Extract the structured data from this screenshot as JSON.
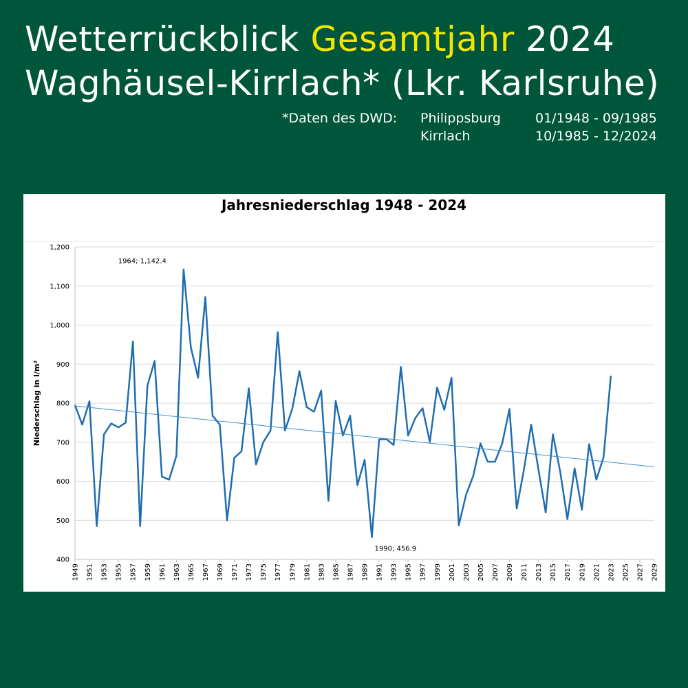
{
  "header": {
    "title_part1": "Wetterrückblick ",
    "title_highlight": "Gesamtjahr",
    "title_part2": " 2024",
    "subtitle": "Waghäusel-Kirrlach* (Lkr. Karlsruhe)",
    "source_label": "*Daten des DWD:",
    "stations": [
      {
        "name": "Philippsburg",
        "period": "01/1948 - 09/1985"
      },
      {
        "name": "Kirrlach",
        "period": "10/1985 - 12/2024"
      }
    ],
    "highlight_color": "#f2e600",
    "background_color": "#00563a"
  },
  "chart_data": {
    "type": "line",
    "title": "Jahresniederschlag 1948 - 2024",
    "xlabel": "",
    "ylabel": "Niederschlag in l/m²",
    "ylim": [
      400,
      1200
    ],
    "xlim": [
      1949,
      2029
    ],
    "y_ticks": [
      "400",
      "500",
      "600",
      "700",
      "800",
      "900",
      "1,000",
      "1,100",
      "1,200"
    ],
    "x_ticks": [
      "1949",
      "1951",
      "1953",
      "1955",
      "1957",
      "1959",
      "1961",
      "1963",
      "1965",
      "1967",
      "1969",
      "1971",
      "1973",
      "1975",
      "1977",
      "1979",
      "1981",
      "1983",
      "1985",
      "1987",
      "1989",
      "1991",
      "1993",
      "1995",
      "1997",
      "1999",
      "2001",
      "2003",
      "2005",
      "2007",
      "2009",
      "2011",
      "2013",
      "2015",
      "2017",
      "2019",
      "2021",
      "2023",
      "2025",
      "2027",
      "2029"
    ],
    "grid": true,
    "series": [
      {
        "color": "#1f6db0",
        "x": [
          1949,
          1950,
          1951,
          1952,
          1953,
          1954,
          1955,
          1956,
          1957,
          1958,
          1959,
          1960,
          1961,
          1962,
          1963,
          1964,
          1965,
          1966,
          1967,
          1968,
          1969,
          1970,
          1971,
          1972,
          1973,
          1974,
          1975,
          1976,
          1977,
          1978,
          1979,
          1980,
          1981,
          1982,
          1983,
          1984,
          1985,
          1986,
          1987,
          1988,
          1989,
          1990,
          1991,
          1992,
          1993,
          1994,
          1995,
          1996,
          1997,
          1998,
          1999,
          2000,
          2001,
          2002,
          2003,
          2004,
          2005,
          2006,
          2007,
          2008,
          2009,
          2010,
          2011,
          2012,
          2013,
          2014,
          2015,
          2016,
          2017,
          2018,
          2019,
          2020,
          2021,
          2022,
          2023
        ],
        "values": [
          795,
          745,
          805,
          485,
          720,
          748,
          738,
          750,
          958,
          485,
          845,
          908,
          612,
          604,
          665,
          1142.4,
          943,
          865,
          1072,
          768,
          745,
          500,
          660,
          677,
          838,
          643,
          700,
          730,
          982,
          730,
          785,
          882,
          790,
          778,
          832,
          550,
          806,
          717,
          768,
          590,
          655,
          456.9,
          707,
          708,
          693,
          893,
          717,
          762,
          787,
          701,
          840,
          783,
          865,
          487,
          565,
          614,
          697,
          650,
          650,
          697,
          785,
          530,
          630,
          745,
          630,
          520,
          720,
          625,
          503,
          633,
          527,
          695,
          604,
          662,
          870
        ]
      },
      {
        "type": "trend",
        "color": "#3a8fd0",
        "x": [
          1949,
          2029
        ],
        "values": [
          793,
          637
        ]
      }
    ],
    "annotations": [
      {
        "text": "1964; 1,142.4",
        "x": 1964,
        "y": 1142.4,
        "position": "above-left"
      },
      {
        "text": "1990; 456.9",
        "x": 1990,
        "y": 456.9,
        "position": "below-right"
      }
    ]
  }
}
